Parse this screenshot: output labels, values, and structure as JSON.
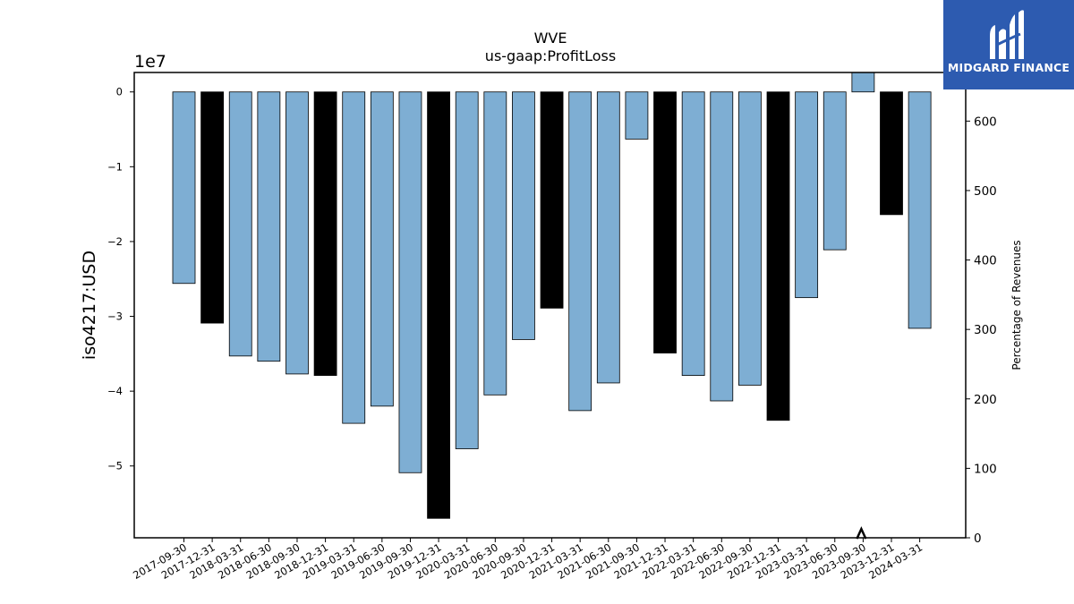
{
  "logo": {
    "text": "MIDGARD FINANCE"
  },
  "chart_data": {
    "type": "bar",
    "title": "WVE",
    "subtitle": "us-gaap:ProfitLoss",
    "ylabel": "iso4217:USD",
    "y_exponent_label": "1e7",
    "y2label": "Percentage of Revenues",
    "ylim": [
      -59600000,
      2600000
    ],
    "y2lim": [
      0,
      670
    ],
    "yticks": [
      0,
      -10000000,
      -20000000,
      -30000000,
      -40000000,
      -50000000
    ],
    "ytick_labels": [
      "0",
      "−1",
      "−2",
      "−3",
      "−4",
      "−5"
    ],
    "y2ticks": [
      0,
      100,
      200,
      300,
      400,
      500,
      600
    ],
    "y2tick_labels": [
      "0",
      "100",
      "200",
      "300",
      "400",
      "500",
      "600"
    ],
    "grid": false,
    "colors": {
      "quarter": "#7eaed3",
      "annual": "#000000",
      "edge": "#000000"
    },
    "categories": [
      "2017-09-30",
      "2017-12-31",
      "2018-03-31",
      "2018-06-30",
      "2018-09-30",
      "2018-12-31",
      "2019-03-31",
      "2019-06-30",
      "2019-09-30",
      "2019-12-31",
      "2020-03-31",
      "2020-06-30",
      "2020-09-30",
      "2020-12-31",
      "2021-03-31",
      "2021-06-30",
      "2021-09-30",
      "2021-12-31",
      "2022-03-31",
      "2022-06-30",
      "2022-09-30",
      "2022-12-31",
      "2023-03-31",
      "2023-06-30",
      "2023-09-30",
      "2023-12-31",
      "2024-03-31"
    ],
    "values": [
      -25600000,
      -30900000,
      -35300000,
      -36000000,
      -37700000,
      -37900000,
      -44300000,
      -42000000,
      -50900000,
      -57000000,
      -47700000,
      -40500000,
      -33100000,
      -28900000,
      -42600000,
      -38900000,
      -6300000,
      -34900000,
      -37900000,
      -41300000,
      -39200000,
      -43900000,
      -27500000,
      -21100000,
      2600000,
      -16400000,
      -31600000
    ],
    "series_type": [
      "quarter",
      "annual",
      "quarter",
      "quarter",
      "quarter",
      "annual",
      "quarter",
      "quarter",
      "quarter",
      "annual",
      "quarter",
      "quarter",
      "quarter",
      "annual",
      "quarter",
      "quarter",
      "quarter",
      "annual",
      "quarter",
      "quarter",
      "quarter",
      "annual",
      "quarter",
      "quarter",
      "quarter",
      "annual",
      "quarter"
    ],
    "marker": {
      "category": "2023-09-30",
      "y2": 5
    }
  }
}
